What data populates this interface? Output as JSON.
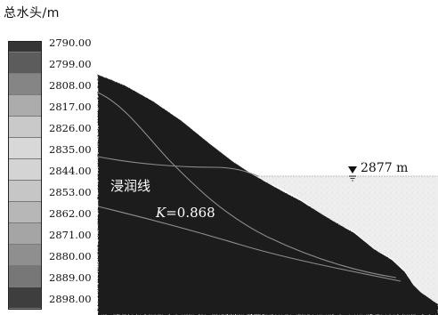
{
  "legend": {
    "title": "总水头/m",
    "levels": [
      {
        "label": "2790.00",
        "color": "#353535"
      },
      {
        "label": "2799.00",
        "color": "#5c5c5c"
      },
      {
        "label": "2808.00",
        "color": "#858585"
      },
      {
        "label": "2817.00",
        "color": "#acacac"
      },
      {
        "label": "2826.00",
        "color": "#c9c9c9"
      },
      {
        "label": "2835.00",
        "color": "#d8d8d8"
      },
      {
        "label": "2844.00",
        "color": "#d4d4d4"
      },
      {
        "label": "2853.00",
        "color": "#c6c6c6"
      },
      {
        "label": "2862.00",
        "color": "#b7b7b7"
      },
      {
        "label": "2871.00",
        "color": "#a5a5a5"
      },
      {
        "label": "2880.00",
        "color": "#8f8f8f"
      },
      {
        "label": "2889.00",
        "color": "#777777"
      },
      {
        "label": "2898.00",
        "color": "#3e3e3e"
      }
    ]
  },
  "diagram": {
    "phreatic_label": "浸润线",
    "k_symbol": "K",
    "k_value": "=0.868",
    "water_level_label": "2877 m",
    "colors": {
      "slope": "#1c1c1c",
      "water": "#eeeeee",
      "curve": "#8c8c8c"
    }
  }
}
